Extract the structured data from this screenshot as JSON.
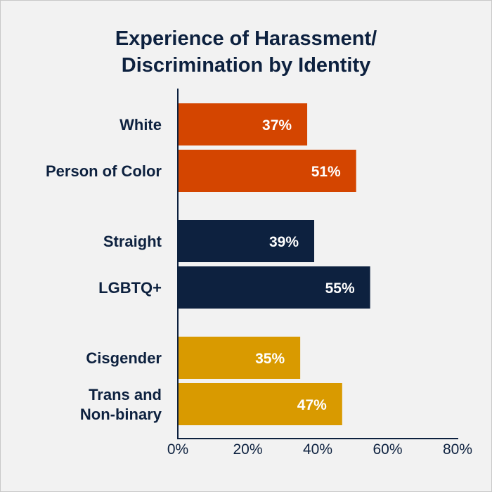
{
  "chart_data": {
    "type": "bar",
    "orientation": "horizontal",
    "title_lines": [
      "Experience of Harassment/",
      "Discrimination by Identity"
    ],
    "xlabel": "",
    "ylabel": "",
    "xlim": [
      0,
      80
    ],
    "x_ticks": [
      0,
      20,
      40,
      60,
      80
    ],
    "x_tick_labels": [
      "0%",
      "20%",
      "40%",
      "60%",
      "80%"
    ],
    "grid": false,
    "categories": [
      {
        "label_lines": [
          "White"
        ],
        "value": 37,
        "value_label": "37%",
        "group": "race"
      },
      {
        "label_lines": [
          "Person of Color"
        ],
        "value": 51,
        "value_label": "51%",
        "group": "race"
      },
      {
        "label_lines": [
          "Straight"
        ],
        "value": 39,
        "value_label": "39%",
        "group": "sexuality"
      },
      {
        "label_lines": [
          "LGBTQ+"
        ],
        "value": 55,
        "value_label": "55%",
        "group": "sexuality"
      },
      {
        "label_lines": [
          "Cisgender"
        ],
        "value": 35,
        "value_label": "35%",
        "group": "gender"
      },
      {
        "label_lines": [
          "Trans and",
          "Non-binary"
        ],
        "value": 47,
        "value_label": "47%",
        "group": "gender"
      }
    ],
    "group_colors": {
      "race": "#d44500",
      "sexuality": "#0d213f",
      "gender": "#d99a00"
    }
  }
}
